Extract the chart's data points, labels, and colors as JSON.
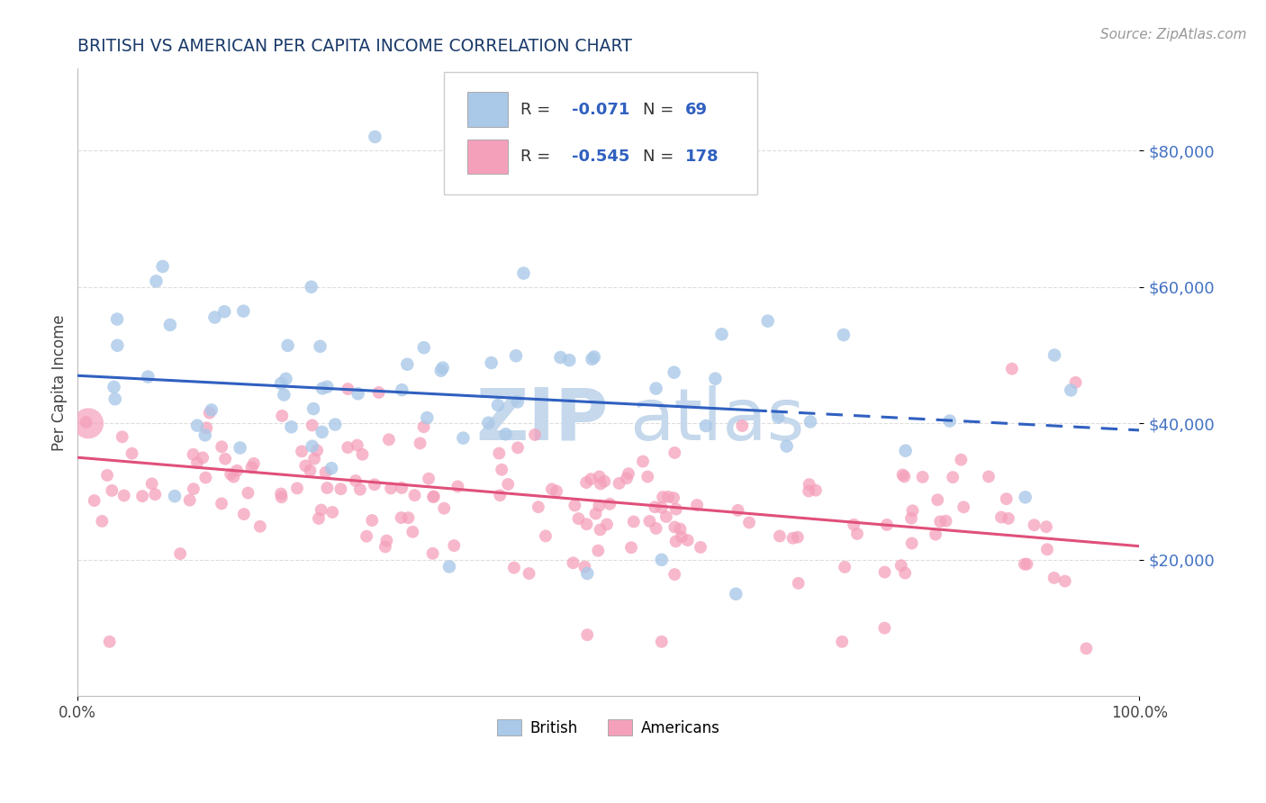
{
  "title": "BRITISH VS AMERICAN PER CAPITA INCOME CORRELATION CHART",
  "source": "Source: ZipAtlas.com",
  "ylabel": "Per Capita Income",
  "xlim": [
    0,
    1
  ],
  "ylim": [
    0,
    92000
  ],
  "yticks": [
    20000,
    40000,
    60000,
    80000
  ],
  "ytick_labels": [
    "$20,000",
    "$40,000",
    "$60,000",
    "$80,000"
  ],
  "xtick_labels": [
    "0.0%",
    "100.0%"
  ],
  "british_color": "#aac8e8",
  "american_color": "#f5a0bb",
  "british_line_color": "#3060c0",
  "american_line_color": "#e0507a",
  "title_color": "#1a3a6a",
  "source_color": "#999999",
  "legend_r1_val": "-0.071",
  "legend_n1_val": "69",
  "legend_r2_val": "-0.545",
  "legend_n2_val": "178",
  "british_R": -0.071,
  "british_N": 69,
  "british_intercept": 47000,
  "british_slope": -8000,
  "american_R": -0.545,
  "american_N": 178,
  "american_intercept": 35000,
  "american_slope": -13000,
  "ytick_color": "#4472c4",
  "background_color": "#ffffff",
  "grid_color": "#dddddd",
  "watermark_color": "#c5d8ec"
}
